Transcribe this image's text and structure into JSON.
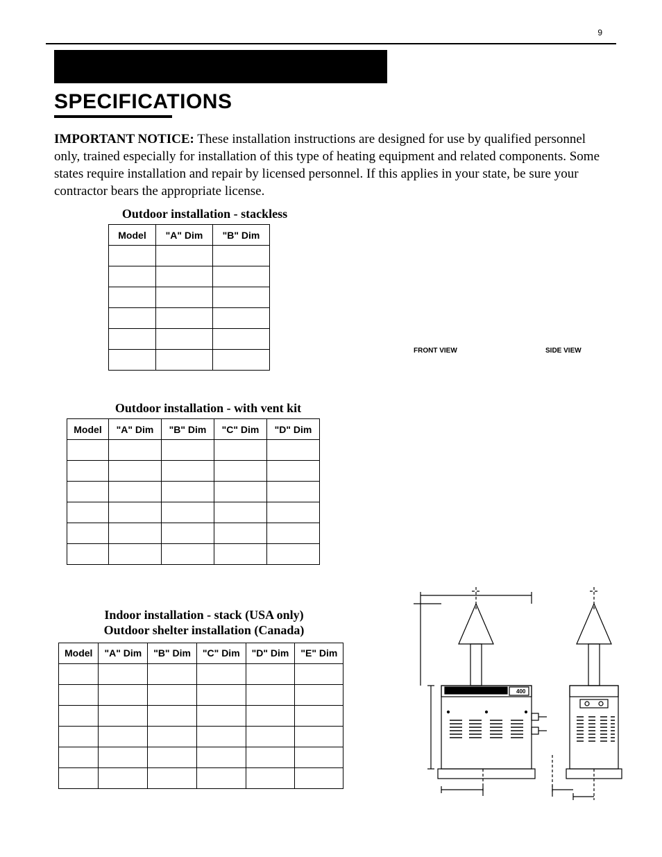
{
  "page_number": "9",
  "black_bar_color": "#000000",
  "title": "SPECIFICATIONS",
  "notice_bold": "IMPORTANT NOTICE:",
  "notice_text": "  These installation instructions are designed for use by qualified personnel only, trained especially for installation of this type of heating equipment and related components. Some states require installation and repair by licensed personnel.  If this applies in your state, be sure your contractor bears the appropriate license.",
  "view_labels": {
    "front": "FRONT VIEW",
    "side": "SIDE VIEW"
  },
  "table1": {
    "caption": "Outdoor installation - stackless",
    "headers": [
      "Model",
      "\"A\" Dim",
      "\"B\" Dim"
    ],
    "rows": [
      [
        "",
        "",
        ""
      ],
      [
        "",
        "",
        ""
      ],
      [
        "",
        "",
        ""
      ],
      [
        "",
        "",
        ""
      ],
      [
        "",
        "",
        ""
      ],
      [
        "",
        "",
        ""
      ]
    ]
  },
  "table2": {
    "caption": "Outdoor installation - with vent kit",
    "headers": [
      "Model",
      "\"A\" Dim",
      "\"B\" Dim",
      "\"C\" Dim",
      "\"D\" Dim"
    ],
    "rows": [
      [
        "",
        "",
        "",
        "",
        ""
      ],
      [
        "",
        "",
        "",
        "",
        ""
      ],
      [
        "",
        "",
        "",
        "",
        ""
      ],
      [
        "",
        "",
        "",
        "",
        ""
      ],
      [
        "",
        "",
        "",
        "",
        ""
      ],
      [
        "",
        "",
        "",
        "",
        ""
      ]
    ]
  },
  "table3": {
    "caption_line1": "Indoor installation - stack (USA only)",
    "caption_line2": "Outdoor shelter installation (Canada)",
    "headers": [
      "Model",
      "\"A\" Dim",
      "\"B\" Dim",
      "\"C\" Dim",
      "\"D\" Dim",
      "\"E\" Dim"
    ],
    "rows": [
      [
        "",
        "",
        "",
        "",
        "",
        ""
      ],
      [
        "",
        "",
        "",
        "",
        "",
        ""
      ],
      [
        "",
        "",
        "",
        "",
        "",
        ""
      ],
      [
        "",
        "",
        "",
        "",
        "",
        ""
      ],
      [
        "",
        "",
        "",
        "",
        "",
        ""
      ],
      [
        "",
        "",
        "",
        "",
        "",
        ""
      ]
    ]
  },
  "diagram": {
    "unit_label": "400",
    "stroke_color": "#000000",
    "dash": "4,3",
    "stroke_width": 1.2
  }
}
